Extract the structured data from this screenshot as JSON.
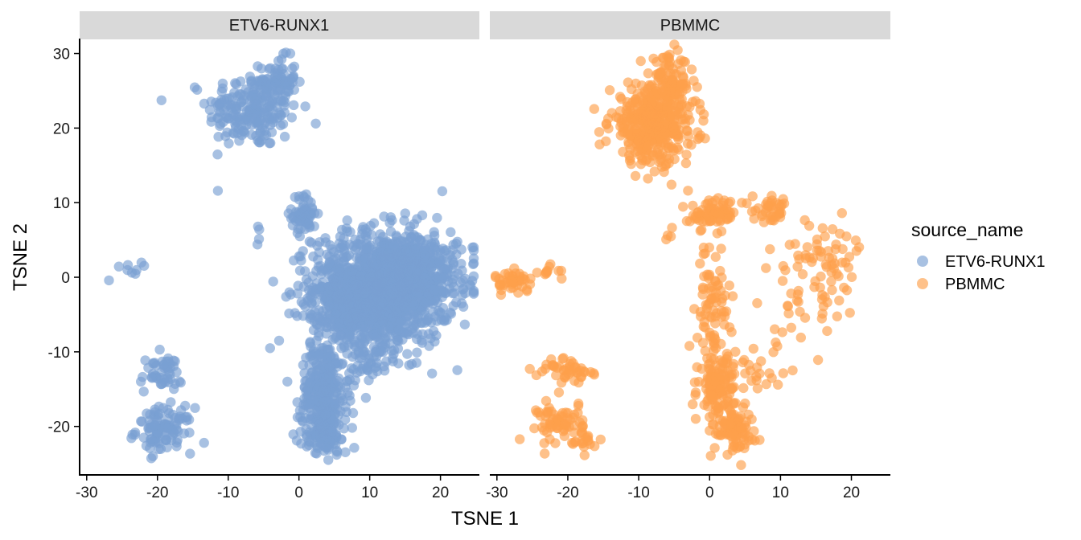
{
  "chart_data": {
    "type": "scatter",
    "xlabel": "TSNE 1",
    "ylabel": "TSNE 2",
    "xlim": [
      -31,
      25.5
    ],
    "ylim": [
      -26.5,
      32
    ],
    "x_ticks": [
      -30,
      -20,
      -10,
      0,
      10,
      20
    ],
    "y_ticks": [
      30,
      20,
      10,
      0,
      -10,
      -20
    ],
    "facet_variable": "source_name",
    "legend": {
      "title": "source_name",
      "position": "right",
      "entries": [
        {
          "name": "ETV6-RUNX1",
          "color": "#7a9fd2"
        },
        {
          "name": "PBMMC",
          "color": "#fd9f4c"
        }
      ]
    },
    "grid": false,
    "facets": [
      {
        "name": "ETV6-RUNX1",
        "color": "#7a9fd2",
        "clusters": [
          {
            "cx": -6.5,
            "cy": 22.5,
            "sx": 3.2,
            "sy": 2.6,
            "n": 220
          },
          {
            "cx": -3.0,
            "cy": 26.5,
            "sx": 1.3,
            "sy": 1.5,
            "n": 60
          },
          {
            "cx": 0.8,
            "cy": 8.5,
            "sx": 0.9,
            "sy": 1.3,
            "n": 60
          },
          {
            "cx": -5.6,
            "cy": 5.8,
            "sx": 0.2,
            "sy": 1.0,
            "n": 4
          },
          {
            "cx": -24.0,
            "cy": 1.2,
            "sx": 0.9,
            "sy": 0.4,
            "n": 8
          },
          {
            "cx": -27.0,
            "cy": -0.3,
            "sx": 0.1,
            "sy": 0.1,
            "n": 1
          },
          {
            "cx": -19.5,
            "cy": -13.0,
            "sx": 1.5,
            "sy": 1.3,
            "n": 50
          },
          {
            "cx": -19.0,
            "cy": -20.5,
            "sx": 2.0,
            "sy": 1.5,
            "n": 100
          },
          {
            "cx": 12.0,
            "cy": -1.5,
            "sx": 5.0,
            "sy": 3.8,
            "n": 1100
          },
          {
            "cx": 7.0,
            "cy": -4.0,
            "sx": 2.8,
            "sy": 3.5,
            "n": 250
          },
          {
            "cx": 16.0,
            "cy": 1.0,
            "sx": 3.5,
            "sy": 2.6,
            "n": 250
          },
          {
            "cx": 3.5,
            "cy": -15.5,
            "sx": 1.6,
            "sy": 3.2,
            "n": 260
          },
          {
            "cx": 3.5,
            "cy": -21.0,
            "sx": 1.7,
            "sy": 1.4,
            "n": 90
          },
          {
            "cx": 9.5,
            "cy": -12.0,
            "sx": 2.0,
            "sy": 1.2,
            "n": 40
          }
        ]
      },
      {
        "name": "PBMMC",
        "color": "#fd9f4c",
        "clusters": [
          {
            "cx": -8.0,
            "cy": 20.5,
            "sx": 3.0,
            "sy": 2.6,
            "n": 420
          },
          {
            "cx": -5.5,
            "cy": 26.0,
            "sx": 1.4,
            "sy": 1.8,
            "n": 80
          },
          {
            "cx": 0.5,
            "cy": 8.5,
            "sx": 1.6,
            "sy": 1.0,
            "n": 70
          },
          {
            "cx": 9.0,
            "cy": 9.0,
            "sx": 1.5,
            "sy": 0.8,
            "n": 40
          },
          {
            "cx": 16.0,
            "cy": 3.5,
            "sx": 3.0,
            "sy": 2.0,
            "n": 40
          },
          {
            "cx": 13.5,
            "cy": -2.0,
            "sx": 4.5,
            "sy": 3.5,
            "n": 50
          },
          {
            "cx": 0.5,
            "cy": -5.0,
            "sx": 1.0,
            "sy": 4.5,
            "n": 90
          },
          {
            "cx": 1.2,
            "cy": -15.0,
            "sx": 1.3,
            "sy": 2.5,
            "n": 120
          },
          {
            "cx": 3.5,
            "cy": -20.0,
            "sx": 1.4,
            "sy": 1.6,
            "n": 80
          },
          {
            "cx": 7.0,
            "cy": -13.0,
            "sx": 1.8,
            "sy": 2.2,
            "n": 25
          },
          {
            "cx": -5.5,
            "cy": 5.8,
            "sx": 0.3,
            "sy": 1.0,
            "n": 4
          },
          {
            "cx": -27.5,
            "cy": -0.5,
            "sx": 1.5,
            "sy": 0.7,
            "n": 45
          },
          {
            "cx": -22.5,
            "cy": 0.5,
            "sx": 0.8,
            "sy": 0.6,
            "n": 10
          },
          {
            "cx": -20.0,
            "cy": -12.5,
            "sx": 2.2,
            "sy": 0.9,
            "n": 45
          },
          {
            "cx": -21.0,
            "cy": -19.5,
            "sx": 1.6,
            "sy": 1.5,
            "n": 70
          },
          {
            "cx": -17.5,
            "cy": -22.0,
            "sx": 0.7,
            "sy": 0.7,
            "n": 15
          }
        ]
      }
    ]
  }
}
